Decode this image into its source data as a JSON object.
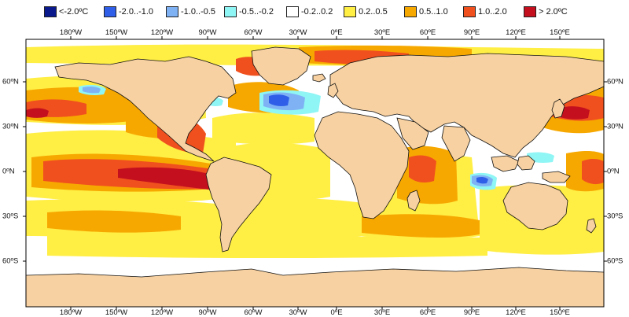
{
  "legend": [
    {
      "label": "<-2.0ºC",
      "color": "#0a1a8c"
    },
    {
      "label": "-2.0..-1.0",
      "color": "#2f5fe8"
    },
    {
      "label": "-1.0..-0.5",
      "color": "#7fb2f5"
    },
    {
      "label": "-0.5..-0.2",
      "color": "#8ff5f5"
    },
    {
      "label": "-0.2..0.2",
      "color": "#ffffff"
    },
    {
      "label": "0.2..0.5",
      "color": "#ffee44"
    },
    {
      "label": "0.5..1.0",
      "color": "#f7a800"
    },
    {
      "label": "1.0..2.0",
      "color": "#f0501e"
    },
    {
      "label": "> 2.0ºC",
      "color": "#c4101e"
    }
  ],
  "axes": {
    "lon_labels": [
      "180ºW",
      "150ºW",
      "120ºW",
      "90ºW",
      "60ºW",
      "30ºW",
      "0ºE",
      "30ºE",
      "60ºE",
      "90ºE",
      "120ºE",
      "150ºE"
    ],
    "lat_labels": [
      "60ºN",
      "30ºN",
      "0ºN",
      "30ºS",
      "60ºS"
    ]
  },
  "colors": {
    "land": "#f7d1a1",
    "coast": "#111111",
    "frame": "#000000"
  }
}
